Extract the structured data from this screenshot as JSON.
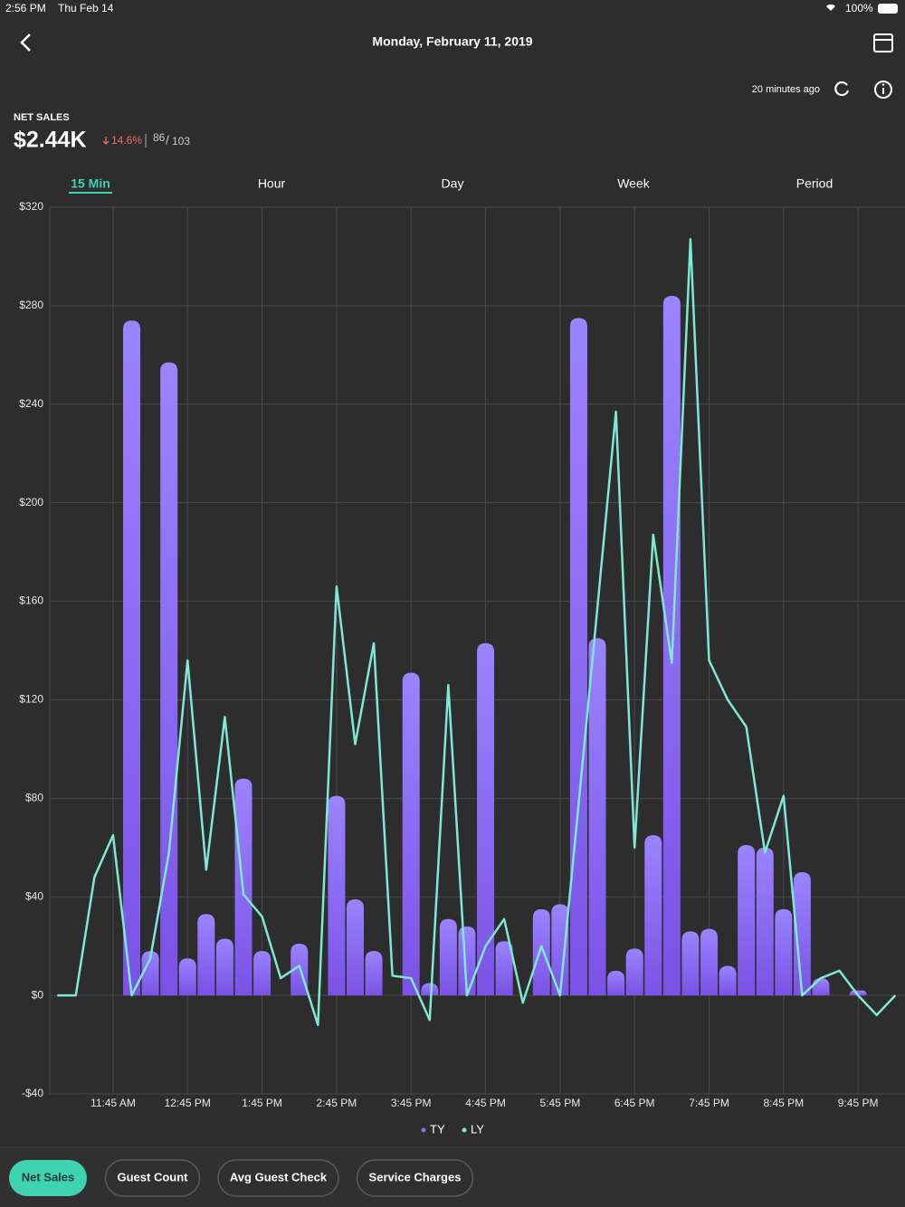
{
  "status_bar": {
    "time": "2:56 PM",
    "date": "Thu Feb 14",
    "battery": "100%"
  },
  "header": {
    "title": "Monday, February 11, 2019",
    "updated": "20 minutes ago"
  },
  "summary": {
    "label": "NET SALES",
    "value": "$2.44K",
    "change": "14.6%",
    "count": "86",
    "separator": "/",
    "total": "103"
  },
  "tabs": [
    "15 Min",
    "Hour",
    "Day",
    "Week",
    "Period"
  ],
  "buttons": [
    "Net Sales",
    "Guest Count",
    "Avg Guest Check",
    "Service Charges"
  ],
  "chart_data": {
    "type": "bar",
    "grid": true,
    "categories": [
      null,
      null,
      null,
      "11:45 AM",
      null,
      null,
      null,
      "12:45 PM",
      null,
      null,
      null,
      "1:45 PM",
      null,
      null,
      null,
      "2:45 PM",
      null,
      null,
      null,
      "3:45 PM",
      null,
      null,
      null,
      "4:45 PM",
      null,
      null,
      null,
      "5:45 PM",
      null,
      null,
      null,
      "6:45 PM",
      null,
      null,
      null,
      "7:45 PM",
      null,
      null,
      null,
      "8:45 PM",
      null,
      null,
      null,
      "9:45 PM",
      null,
      null
    ],
    "ylim": [
      -40,
      320
    ],
    "yticks": [
      {
        "value": -40,
        "label": "-$40"
      },
      {
        "value": 0,
        "label": "$0"
      },
      {
        "value": 40,
        "label": "$40"
      },
      {
        "value": 80,
        "label": "$80"
      },
      {
        "value": 120,
        "label": "$120"
      },
      {
        "value": 160,
        "label": "$160"
      },
      {
        "value": 200,
        "label": "$200"
      },
      {
        "value": 240,
        "label": "$240"
      },
      {
        "value": 280,
        "label": "$280"
      },
      {
        "value": 320,
        "label": "$320"
      }
    ],
    "series": [
      {
        "name": "TY",
        "type": "bar",
        "color": "#8a6cf5",
        "values": [
          0,
          0,
          0,
          0,
          274,
          18,
          257,
          15,
          33,
          23,
          88,
          18,
          0,
          21,
          0,
          81,
          39,
          18,
          0,
          131,
          5,
          31,
          28,
          143,
          22,
          0,
          35,
          37,
          275,
          145,
          10,
          19,
          65,
          284,
          26,
          27,
          12,
          61,
          60,
          35,
          50,
          7,
          0,
          2,
          0,
          0
        ]
      },
      {
        "name": "LY",
        "type": "line",
        "color": "#7ee8d0",
        "values": [
          0,
          0,
          48,
          65,
          0,
          15,
          58,
          136,
          51,
          113,
          41,
          32,
          7,
          12,
          -12,
          166,
          102,
          143,
          8,
          7,
          -10,
          126,
          0,
          20,
          31,
          -3,
          20,
          0,
          78,
          157,
          237,
          60,
          187,
          135,
          307,
          136,
          120,
          109,
          58,
          81,
          0,
          7,
          10,
          0,
          -8,
          0
        ]
      }
    ]
  }
}
